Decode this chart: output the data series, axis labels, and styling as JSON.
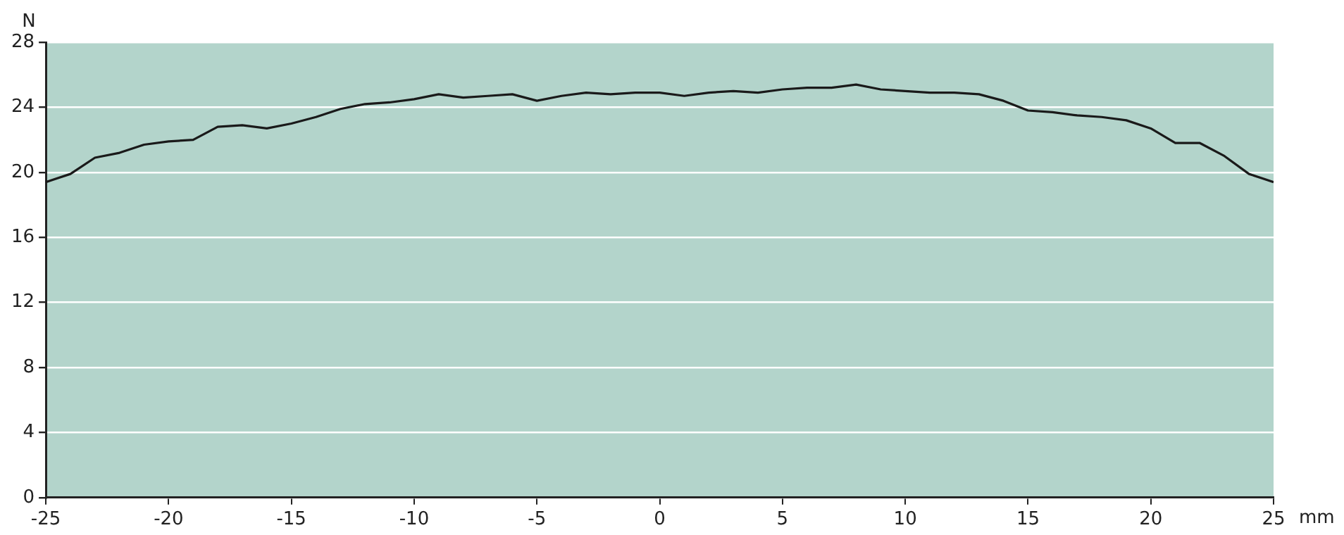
{
  "chart_data": {
    "type": "line",
    "xlabel": "mm",
    "ylabel": "N",
    "x": [
      -25,
      -24,
      -23,
      -22,
      -21,
      -20,
      -19,
      -18,
      -17,
      -16,
      -15,
      -14,
      -13,
      -12,
      -11,
      -10,
      -9,
      -8,
      -7,
      -6,
      -5,
      -4,
      -3,
      -2,
      -1,
      0,
      1,
      2,
      3,
      4,
      5,
      6,
      7,
      8,
      9,
      10,
      11,
      12,
      13,
      14,
      15,
      16,
      17,
      18,
      19,
      20,
      21,
      22,
      23,
      24,
      25
    ],
    "series": [
      {
        "color": "#1a1a1a",
        "values": [
          19.4,
          19.9,
          20.9,
          21.2,
          21.7,
          21.9,
          22.0,
          22.8,
          22.9,
          22.7,
          23.0,
          23.4,
          23.9,
          24.2,
          24.3,
          24.5,
          24.8,
          24.6,
          24.7,
          24.8,
          24.4,
          24.7,
          24.9,
          24.8,
          24.9,
          24.9,
          24.7,
          24.9,
          25.0,
          24.9,
          25.1,
          25.2,
          25.2,
          25.4,
          25.1,
          25.0,
          24.9,
          24.9,
          24.8,
          24.4,
          23.8,
          23.7,
          23.5,
          23.4,
          23.2,
          22.7,
          21.8,
          21.8,
          21.0,
          19.9,
          19.4
        ]
      }
    ],
    "xlim": [
      -25,
      25
    ],
    "xticks": [
      -25,
      -20,
      -15,
      -10,
      -5,
      0,
      5,
      10,
      15,
      20,
      25
    ],
    "ylim": [
      0,
      28
    ],
    "yticks": [
      0,
      4,
      8,
      12,
      16,
      20,
      24,
      28
    ],
    "grid": "y",
    "marker": "none",
    "line_style": "solid",
    "legend": false
  }
}
